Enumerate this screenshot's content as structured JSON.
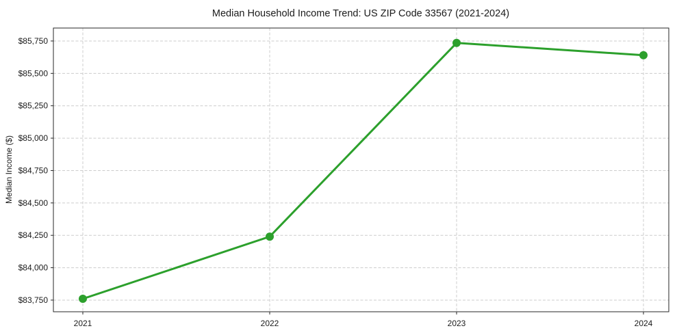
{
  "chart_data": {
    "type": "line",
    "title": "Median Household Income Trend: US ZIP Code 33567 (2021-2024)",
    "xlabel": "",
    "ylabel": "Median Income ($)",
    "categories": [
      "2021",
      "2022",
      "2023",
      "2024"
    ],
    "series": [
      {
        "name": "Median Household Income",
        "values": [
          83760,
          84240,
          85735,
          85640
        ]
      }
    ],
    "ylim": [
      83660,
      85850
    ],
    "yticks": {
      "values": [
        83750,
        84000,
        84250,
        84500,
        84750,
        85000,
        85250,
        85500,
        85750
      ],
      "labels": [
        "$83,750",
        "$84,000",
        "$84,250",
        "$84,500",
        "$84,750",
        "$85,000",
        "$85,250",
        "$85,500",
        "$85,750"
      ]
    },
    "grid": true,
    "grid_style": "dashed",
    "legend": "none",
    "marker": "circle",
    "colors": {
      "line": "#2ca02c",
      "marker": "#2ca02c",
      "grid": "#cccccc",
      "axis": "#262626",
      "text": "#1a1a1a",
      "background": "#ffffff"
    }
  }
}
